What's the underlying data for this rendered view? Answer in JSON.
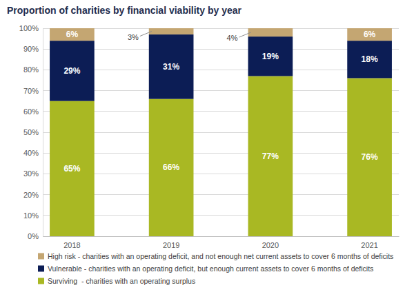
{
  "chart_data": {
    "type": "bar",
    "title": "Proportion of charities by financial viability by year",
    "categories": [
      "2018",
      "2019",
      "2020",
      "2021"
    ],
    "series": [
      {
        "name": "Surviving  - charities with an operating surplus",
        "color": "#a9b823",
        "values": [
          65,
          66,
          77,
          76
        ],
        "value_labels": [
          "65%",
          "66%",
          "77%",
          "76%"
        ]
      },
      {
        "name": "Vulnerable - charities with an operating deficit, but enough current assets to cover 6 months of deficits",
        "color": "#0c1d55",
        "values": [
          29,
          31,
          19,
          18
        ],
        "value_labels": [
          "29%",
          "31%",
          "19%",
          "18%"
        ]
      },
      {
        "name": "High risk - charities with an operating deficit, and not enough net current assets to cover 6 months of deficits",
        "color": "#c4a672",
        "values": [
          6,
          3,
          4,
          6
        ],
        "value_labels": [
          "6%",
          "3%",
          "4%",
          "6%"
        ]
      }
    ],
    "ylim": [
      0,
      100
    ],
    "yticks": [
      {
        "value": 0,
        "label": "0%"
      },
      {
        "value": 10,
        "label": "10%"
      },
      {
        "value": 20,
        "label": "20%"
      },
      {
        "value": 30,
        "label": "30%"
      },
      {
        "value": 40,
        "label": "40%"
      },
      {
        "value": 50,
        "label": "50%"
      },
      {
        "value": 60,
        "label": "60%"
      },
      {
        "value": 70,
        "label": "70%"
      },
      {
        "value": 80,
        "label": "80%"
      },
      {
        "value": 90,
        "label": "90%"
      },
      {
        "value": 100,
        "label": "100%"
      }
    ],
    "grid": true,
    "stacked": true,
    "data_labels": true,
    "legend": "bottom"
  }
}
